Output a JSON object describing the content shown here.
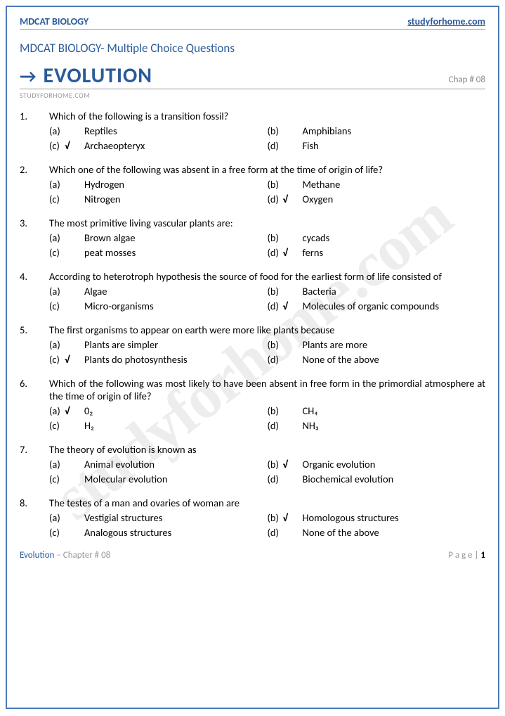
{
  "header": {
    "left": "MDCAT BIOLOGY",
    "right": "studyforhome.com"
  },
  "subtitle": "MDCAT BIOLOGY- Multiple Choice Questions",
  "arrow": "→",
  "chapterTitle": "EVOLUTION",
  "chapNum": "Chap # 08",
  "siteSmall": "STUDYFORHOME.COM",
  "watermark": "studyforhome.com",
  "questions": [
    {
      "num": "1.",
      "text": "Which of the following is a transition fossil?",
      "opts": [
        {
          "l": "(a)",
          "c": "",
          "t": "Reptiles"
        },
        {
          "l": "(b)",
          "c": "",
          "t": "Amphibians"
        },
        {
          "l": "(c)",
          "c": "√",
          "t": "Archaeopteryx"
        },
        {
          "l": "(d)",
          "c": "",
          "t": "Fish"
        }
      ]
    },
    {
      "num": "2.",
      "text": "Which one of the following was absent in a free form at the time of origin of life?",
      "opts": [
        {
          "l": "(a)",
          "c": "",
          "t": "Hydrogen"
        },
        {
          "l": "(b)",
          "c": "",
          "t": "Methane"
        },
        {
          "l": "(c)",
          "c": "",
          "t": "Nitrogen"
        },
        {
          "l": "(d)",
          "c": "√",
          "t": "Oxygen"
        }
      ]
    },
    {
      "num": "3.",
      "text": "The most primitive living vascular plants are:",
      "opts": [
        {
          "l": "(a)",
          "c": "",
          "t": "Brown algae"
        },
        {
          "l": "(b)",
          "c": "",
          "t": "cycads"
        },
        {
          "l": "(c)",
          "c": "",
          "t": "peat mosses"
        },
        {
          "l": "(d)",
          "c": "√",
          "t": "ferns"
        }
      ]
    },
    {
      "num": "4.",
      "text": "According to heterotroph hypothesis the source of food for the earliest form of life consisted of",
      "opts": [
        {
          "l": "(a)",
          "c": "",
          "t": "Algae"
        },
        {
          "l": "(b)",
          "c": "",
          "t": "Bacteria"
        },
        {
          "l": "(c)",
          "c": "",
          "t": "Micro-organisms"
        },
        {
          "l": "(d)",
          "c": "√",
          "t": "Molecules of organic compounds"
        }
      ]
    },
    {
      "num": "5.",
      "text": "The first organisms to appear on earth were more like plants because",
      "opts": [
        {
          "l": "(a)",
          "c": "",
          "t": "Plants are simpler"
        },
        {
          "l": "(b)",
          "c": "",
          "t": "Plants are more"
        },
        {
          "l": "(c)",
          "c": "√",
          "t": "Plants do photosynthesis"
        },
        {
          "l": "(d)",
          "c": "",
          "t": "None of the above"
        }
      ]
    },
    {
      "num": "6.",
      "text": "Which of the following was most likely to have been absent in free form in the primordial atmosphere at the time of origin of life?",
      "opts": [
        {
          "l": "(a)",
          "c": "√",
          "t": "0₂"
        },
        {
          "l": "(b)",
          "c": "",
          "t": "CH₄"
        },
        {
          "l": "(c)",
          "c": "",
          "t": "H₂"
        },
        {
          "l": "(d)",
          "c": "",
          "t": "NH₃"
        }
      ]
    },
    {
      "num": "7.",
      "text": "The theory of evolution is known as",
      "opts": [
        {
          "l": "(a)",
          "c": "",
          "t": "Animal evolution"
        },
        {
          "l": "(b)",
          "c": "√",
          "t": "Organic evolution"
        },
        {
          "l": "(c)",
          "c": "",
          "t": "Molecular evolution"
        },
        {
          "l": "(d)",
          "c": "",
          "t": "Biochemical evolution"
        }
      ]
    },
    {
      "num": "8.",
      "text": "The testes of a man and ovaries of woman are",
      "opts": [
        {
          "l": "(a)",
          "c": "",
          "t": "Vestigial structures"
        },
        {
          "l": "(b)",
          "c": "√",
          "t": "Homologous structures"
        },
        {
          "l": "(c)",
          "c": "",
          "t": "Analogous structures"
        },
        {
          "l": "(d)",
          "c": "",
          "t": "None of the above"
        }
      ]
    }
  ],
  "footer": {
    "chapName": "Evolution",
    "chapRest": " – Chapter # 08",
    "pageLabel": "P a g e  | ",
    "pageNum": "1"
  }
}
